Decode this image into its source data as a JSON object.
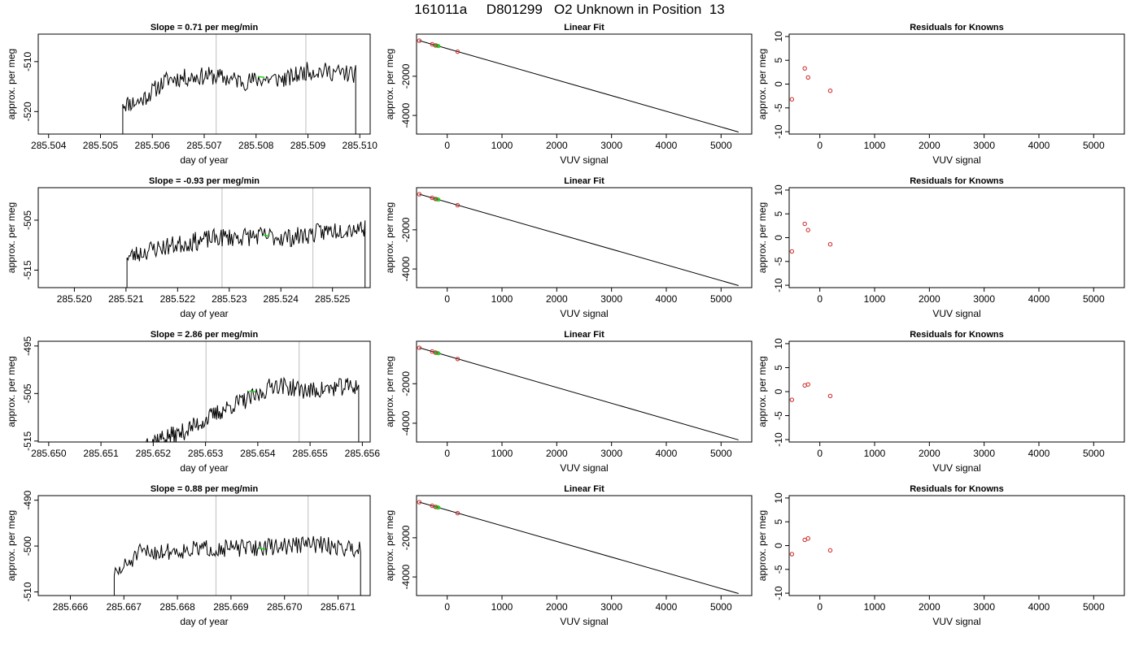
{
  "title": "161011a     D801299   O2 Unknown in Position  13",
  "colors": {
    "trace": "#000000",
    "marker_vline": "#c8c8c8",
    "unknown_mark": "#22cc22",
    "known_point": "#cc2222",
    "fit_line": "#000000"
  },
  "chart_data": [
    {
      "type": "line",
      "panel": "trace",
      "title": "Slope =  0.71  per meg/min",
      "xlabel": "day of year",
      "ylabel": "approx. per meg",
      "xlim": [
        285.5038,
        285.5102
      ],
      "ylim": [
        -524.5,
        -504.5
      ],
      "xticks": [
        "285.504",
        "285.505",
        "285.506",
        "285.507",
        "285.508",
        "285.509",
        "285.510"
      ],
      "yticks": [
        "-510",
        "-520"
      ],
      "x_start": 285.50543,
      "x_end": 285.50992,
      "start_value": -525.0,
      "end_value": -525.0,
      "segments": [
        [
          285.50543,
          -518.5
        ],
        [
          285.50575,
          -518.0
        ],
        [
          285.5063,
          -513.5
        ],
        [
          285.5071,
          -512.8
        ],
        [
          285.5078,
          -514.0
        ],
        [
          285.5081,
          -513.5
        ],
        [
          285.5086,
          -513.5
        ],
        [
          285.509,
          -511.8
        ],
        [
          285.5094,
          -512.0
        ],
        [
          285.50985,
          -512.5
        ]
      ],
      "noise_amplitude": 1.8,
      "seed": 11,
      "vlines": [
        285.50723,
        285.50896
      ],
      "unknown_mark": [
        285.5081,
        -513.0
      ]
    },
    {
      "type": "line",
      "panel": "fit",
      "title": "Linear Fit",
      "xlabel": "VUV signal",
      "ylabel": "approx. per meg",
      "xlim": [
        -560,
        5560
      ],
      "ylim": [
        -4950,
        150
      ],
      "xticks": [
        0,
        1000,
        2000,
        3000,
        4000,
        5000
      ],
      "yticks": [
        -2000,
        -4000
      ],
      "line": {
        "x": [
          -510,
          5320
        ],
        "y": [
          -180,
          -4845
        ]
      },
      "known_points": [
        {
          "x": -510,
          "y": -183
        },
        {
          "x": -275,
          "y": -368
        },
        {
          "x": -215,
          "y": -426
        },
        {
          "x": 190,
          "y": -746
        }
      ],
      "unknown_points": [
        {
          "x": -200,
          "y": -430
        },
        {
          "x": -180,
          "y": -445
        },
        {
          "x": -160,
          "y": -460
        }
      ]
    },
    {
      "type": "scatter",
      "panel": "residuals",
      "title": "Residuals for Knowns",
      "xlabel": "VUV signal",
      "ylabel": "approx. per meg",
      "xlim": [
        -560,
        5560
      ],
      "ylim": [
        -10.5,
        10.5
      ],
      "xticks": [
        0,
        1000,
        2000,
        3000,
        4000,
        5000
      ],
      "yticks": [
        10,
        5,
        0,
        -5,
        -10
      ],
      "points": [
        {
          "x": -510,
          "y": -3.2
        },
        {
          "x": -275,
          "y": 3.3
        },
        {
          "x": -215,
          "y": 1.4
        },
        {
          "x": 190,
          "y": -1.4
        }
      ]
    },
    {
      "type": "line",
      "panel": "trace",
      "title": "Slope =  -0.93  per meg/min",
      "xlabel": "day of year",
      "ylabel": "approx. per meg",
      "xlim": [
        285.5193,
        285.52573
      ],
      "ylim": [
        -518.5,
        -498.5
      ],
      "xticks": [
        "285.520",
        "285.521",
        "285.522",
        "285.523",
        "285.524",
        "285.525"
      ],
      "yticks": [
        "-505",
        "-515"
      ],
      "x_start": 285.52102,
      "x_end": 285.52563,
      "start_value": -519.0,
      "end_value": -519.0,
      "segments": [
        [
          285.52102,
          -512.5
        ],
        [
          285.5215,
          -510.8
        ],
        [
          285.5222,
          -509.5
        ],
        [
          285.5228,
          -508.5
        ],
        [
          285.5236,
          -508.2
        ],
        [
          285.5242,
          -508.5
        ],
        [
          285.525,
          -507.0
        ],
        [
          285.5255,
          -506.5
        ]
      ],
      "noise_amplitude": 1.9,
      "seed": 23,
      "vlines": [
        285.52286,
        285.52462
      ],
      "unknown_mark": [
        285.52372,
        -508.0
      ]
    },
    {
      "type": "line",
      "panel": "fit",
      "title": "Linear Fit",
      "xlabel": "VUV signal",
      "ylabel": "approx. per meg",
      "xlim": [
        -560,
        5560
      ],
      "ylim": [
        -4950,
        150
      ],
      "xticks": [
        0,
        1000,
        2000,
        3000,
        4000,
        5000
      ],
      "yticks": [
        -2000,
        -4000
      ],
      "line": {
        "x": [
          -510,
          5320
        ],
        "y": [
          -180,
          -4845
        ]
      },
      "known_points": [
        {
          "x": -510,
          "y": -183
        },
        {
          "x": -275,
          "y": -368
        },
        {
          "x": -215,
          "y": -426
        },
        {
          "x": 190,
          "y": -746
        }
      ],
      "unknown_points": [
        {
          "x": -200,
          "y": -430
        },
        {
          "x": -180,
          "y": -445
        },
        {
          "x": -160,
          "y": -460
        }
      ]
    },
    {
      "type": "scatter",
      "panel": "residuals",
      "title": "Residuals for Knowns",
      "xlabel": "VUV signal",
      "ylabel": "approx. per meg",
      "xlim": [
        -560,
        5560
      ],
      "ylim": [
        -10.5,
        10.5
      ],
      "xticks": [
        0,
        1000,
        2000,
        3000,
        4000,
        5000
      ],
      "yticks": [
        10,
        5,
        0,
        -5,
        -10
      ],
      "points": [
        {
          "x": -510,
          "y": -2.9
        },
        {
          "x": -275,
          "y": 2.9
        },
        {
          "x": -215,
          "y": 1.6
        },
        {
          "x": 190,
          "y": -1.4
        }
      ]
    },
    {
      "type": "line",
      "panel": "trace",
      "title": "Slope =  2.86  per meg/min",
      "xlabel": "day of year",
      "ylabel": "approx. per meg",
      "xlim": [
        285.6498,
        285.65615
      ],
      "ylim": [
        -515.2,
        -494.0
      ],
      "xticks": [
        "285.650",
        "285.651",
        "285.652",
        "285.653",
        "285.654",
        "285.655",
        "285.656"
      ],
      "yticks": [
        "-495",
        "-505",
        "-515"
      ],
      "x_start": 285.65187,
      "x_end": 285.65593,
      "start_value": -516.0,
      "end_value": -516.0,
      "segments": [
        [
          285.65187,
          -515.0
        ],
        [
          285.6525,
          -513.5
        ],
        [
          285.653,
          -510.5
        ],
        [
          285.6535,
          -507.5
        ],
        [
          285.654,
          -505.5
        ],
        [
          285.6543,
          -503.0
        ],
        [
          285.655,
          -504.5
        ],
        [
          285.6557,
          -503.5
        ]
      ],
      "noise_amplitude": 1.9,
      "seed": 37,
      "vlines": [
        285.65301,
        285.65479
      ],
      "unknown_mark": [
        285.6539,
        -504.5
      ]
    },
    {
      "type": "line",
      "panel": "fit",
      "title": "Linear Fit",
      "xlabel": "VUV signal",
      "ylabel": "approx. per meg",
      "xlim": [
        -560,
        5560
      ],
      "ylim": [
        -4950,
        150
      ],
      "xticks": [
        0,
        1000,
        2000,
        3000,
        4000,
        5000
      ],
      "yticks": [
        -2000,
        -4000
      ],
      "line": {
        "x": [
          -510,
          5320
        ],
        "y": [
          -180,
          -4845
        ]
      },
      "known_points": [
        {
          "x": -510,
          "y": -183
        },
        {
          "x": -275,
          "y": -368
        },
        {
          "x": -215,
          "y": -426
        },
        {
          "x": 190,
          "y": -746
        }
      ],
      "unknown_points": [
        {
          "x": -200,
          "y": -430
        },
        {
          "x": -180,
          "y": -445
        },
        {
          "x": -160,
          "y": -460
        }
      ]
    },
    {
      "type": "scatter",
      "panel": "residuals",
      "title": "Residuals for Knowns",
      "xlabel": "VUV signal",
      "ylabel": "approx. per meg",
      "xlim": [
        -560,
        5560
      ],
      "ylim": [
        -10.5,
        10.5
      ],
      "xticks": [
        0,
        1000,
        2000,
        3000,
        4000,
        5000
      ],
      "yticks": [
        10,
        5,
        0,
        -5,
        -10
      ],
      "points": [
        {
          "x": -510,
          "y": -1.7
        },
        {
          "x": -275,
          "y": 1.3
        },
        {
          "x": -215,
          "y": 1.5
        },
        {
          "x": 190,
          "y": -0.9
        }
      ]
    },
    {
      "type": "line",
      "panel": "trace",
      "title": "Slope =  0.88  per meg/min",
      "xlabel": "day of year",
      "ylabel": "approx. per meg",
      "xlim": [
        285.6654,
        285.6716
      ],
      "ylim": [
        -510.8,
        -489.0
      ],
      "xticks": [
        "285.666",
        "285.667",
        "285.668",
        "285.669",
        "285.670",
        "285.671"
      ],
      "yticks": [
        "-490",
        "-500",
        "-510"
      ],
      "x_start": 285.66682,
      "x_end": 285.67142,
      "start_value": -512.0,
      "end_value": -512.0,
      "segments": [
        [
          285.66682,
          -506.5
        ],
        [
          285.6673,
          -501.5
        ],
        [
          285.668,
          -501.0
        ],
        [
          285.6686,
          -500.5
        ],
        [
          285.6693,
          -500.5
        ],
        [
          285.67,
          -500.0
        ],
        [
          285.6705,
          -499.5
        ],
        [
          285.6712,
          -500.5
        ]
      ],
      "noise_amplitude": 1.9,
      "seed": 51,
      "vlines": [
        285.66872,
        285.67044
      ],
      "unknown_mark": [
        285.66958,
        -500.5
      ]
    },
    {
      "type": "line",
      "panel": "fit",
      "title": "Linear Fit",
      "xlabel": "VUV signal",
      "ylabel": "approx. per meg",
      "xlim": [
        -560,
        5560
      ],
      "ylim": [
        -4950,
        150
      ],
      "xticks": [
        0,
        1000,
        2000,
        3000,
        4000,
        5000
      ],
      "yticks": [
        -2000,
        -4000
      ],
      "line": {
        "x": [
          -510,
          5320
        ],
        "y": [
          -180,
          -4845
        ]
      },
      "known_points": [
        {
          "x": -510,
          "y": -183
        },
        {
          "x": -275,
          "y": -368
        },
        {
          "x": -215,
          "y": -426
        },
        {
          "x": 190,
          "y": -746
        }
      ],
      "unknown_points": [
        {
          "x": -200,
          "y": -430
        },
        {
          "x": -180,
          "y": -445
        },
        {
          "x": -160,
          "y": -460
        }
      ]
    },
    {
      "type": "scatter",
      "panel": "residuals",
      "title": "Residuals for Knowns",
      "xlabel": "VUV signal",
      "ylabel": "approx. per meg",
      "xlim": [
        -560,
        5560
      ],
      "ylim": [
        -10.5,
        10.5
      ],
      "xticks": [
        0,
        1000,
        2000,
        3000,
        4000,
        5000
      ],
      "yticks": [
        10,
        5,
        0,
        -5,
        -10
      ],
      "points": [
        {
          "x": -510,
          "y": -1.8
        },
        {
          "x": -275,
          "y": 1.2
        },
        {
          "x": -215,
          "y": 1.5
        },
        {
          "x": 190,
          "y": -1.0
        }
      ]
    }
  ]
}
